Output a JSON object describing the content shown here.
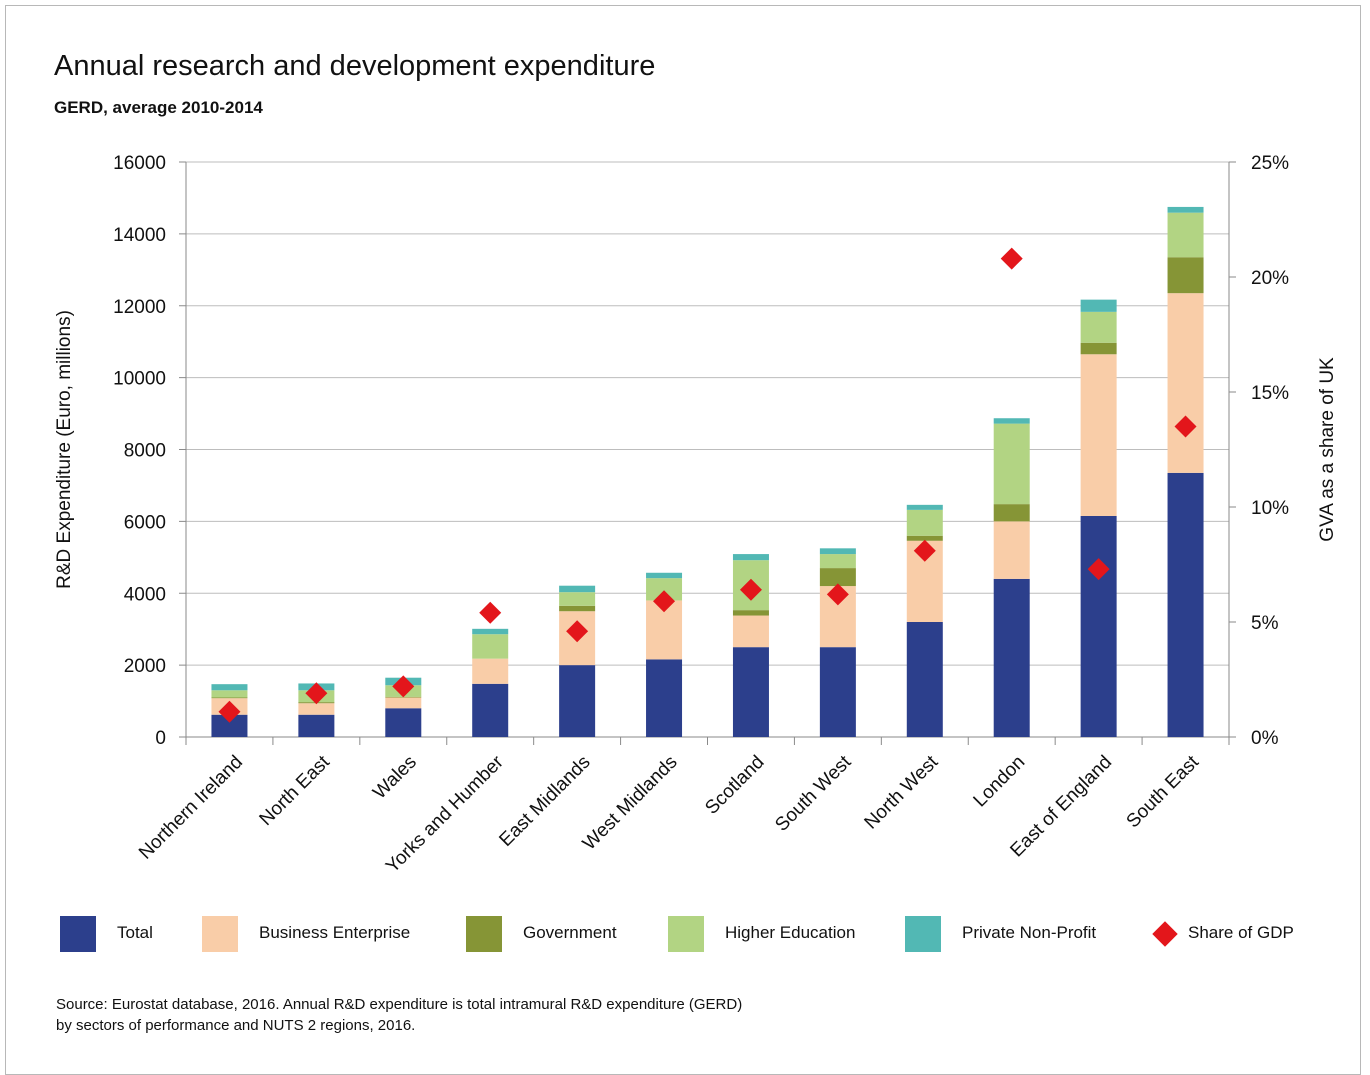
{
  "title": "Annual research and development expenditure",
  "subtitle": "GERD, average 2010-2014",
  "source": {
    "line1": "Source: Eurostat database, 2016. Annual R&D expenditure is total intramural R&D expenditure (GERD)",
    "line2": "by sectors of performance and NUTS 2 regions, 2016."
  },
  "legend": [
    {
      "label": "Total",
      "color": "#2c3f8c",
      "shape": "square"
    },
    {
      "label": "Business Enterprise",
      "color": "#f9cda8",
      "shape": "square"
    },
    {
      "label": "Government",
      "color": "#869536",
      "shape": "square"
    },
    {
      "label": "Higher Education",
      "color": "#b2d483",
      "shape": "square"
    },
    {
      "label": "Private Non-Profit",
      "color": "#52b8b4",
      "shape": "square"
    },
    {
      "label": "Share of GDP",
      "color": "#e3161b",
      "shape": "diamond"
    }
  ],
  "chart_data": {
    "type": "bar",
    "stacked": true,
    "categories": [
      "Northern Ireland",
      "North East",
      "Wales",
      "Yorks and Humber",
      "East Midlands",
      "West Midlands",
      "Scotland",
      "South West",
      "North West",
      "London",
      "East of England",
      "South East"
    ],
    "ylabel": "R&D Expenditure (Euro, millions)",
    "y2label": "GVA as a share of UK",
    "ylim": [
      0,
      16000
    ],
    "yticks": [
      "0",
      "2000",
      "4000",
      "6000",
      "8000",
      "10000",
      "12000",
      "14000",
      "16000"
    ],
    "y2lim": [
      0,
      25
    ],
    "y2ticks": [
      "0%",
      "5%",
      "10%",
      "15%",
      "20%",
      "25%"
    ],
    "grid": true,
    "legend_position": "bottom",
    "series": [
      {
        "name": "Total",
        "color": "#2c3f8c",
        "values": [
          620,
          620,
          800,
          1480,
          2000,
          2160,
          2500,
          2500,
          3200,
          4400,
          6150,
          7350
        ]
      },
      {
        "name": "Business Enterprise",
        "color": "#f9cda8",
        "values": [
          460,
          320,
          300,
          700,
          1500,
          1640,
          880,
          1700,
          2260,
          1600,
          4500,
          5000
        ]
      },
      {
        "name": "Government",
        "color": "#869536",
        "values": [
          20,
          30,
          20,
          0,
          150,
          0,
          150,
          500,
          140,
          480,
          320,
          1000
        ]
      },
      {
        "name": "Higher Education",
        "color": "#b2d483",
        "values": [
          200,
          330,
          320,
          680,
          380,
          620,
          1390,
          390,
          720,
          2240,
          860,
          1240
        ]
      },
      {
        "name": "Private Non-Profit",
        "color": "#52b8b4",
        "values": [
          170,
          190,
          210,
          150,
          180,
          150,
          170,
          160,
          140,
          150,
          340,
          160
        ]
      }
    ],
    "share_of_gdp": {
      "name": "Share of GDP",
      "color": "#e3161b",
      "values": [
        1.1,
        1.9,
        2.2,
        5.4,
        4.6,
        5.9,
        6.4,
        6.2,
        8.1,
        20.8,
        7.3,
        13.5
      ]
    }
  }
}
